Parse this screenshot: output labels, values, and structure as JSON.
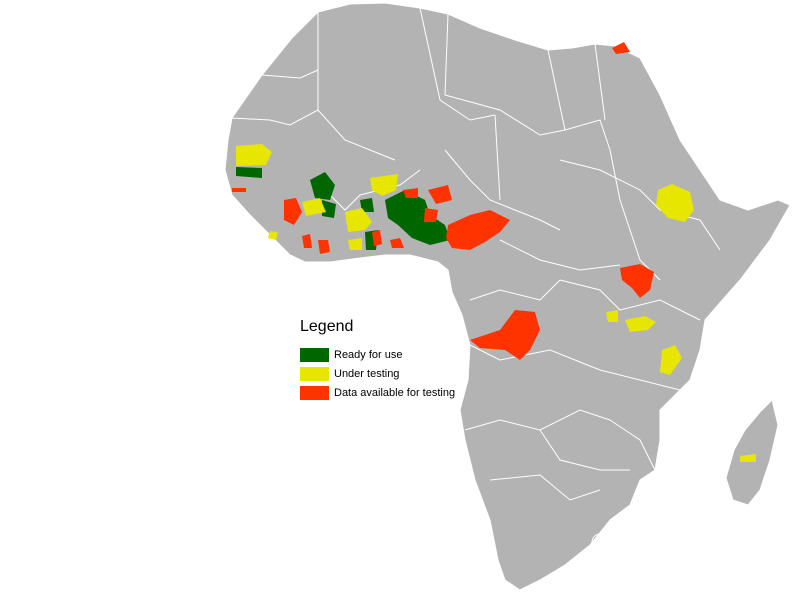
{
  "legend": {
    "title": "Legend",
    "items": [
      {
        "label": "Ready for use",
        "color": "#006600"
      },
      {
        "label": "Under testing",
        "color": "#e6e600"
      },
      {
        "label": "Data available for testing",
        "color": "#ff3300"
      }
    ]
  },
  "colors": {
    "land": "#b3b3b3",
    "borders": "#ffffff",
    "background": "#ffffff"
  }
}
